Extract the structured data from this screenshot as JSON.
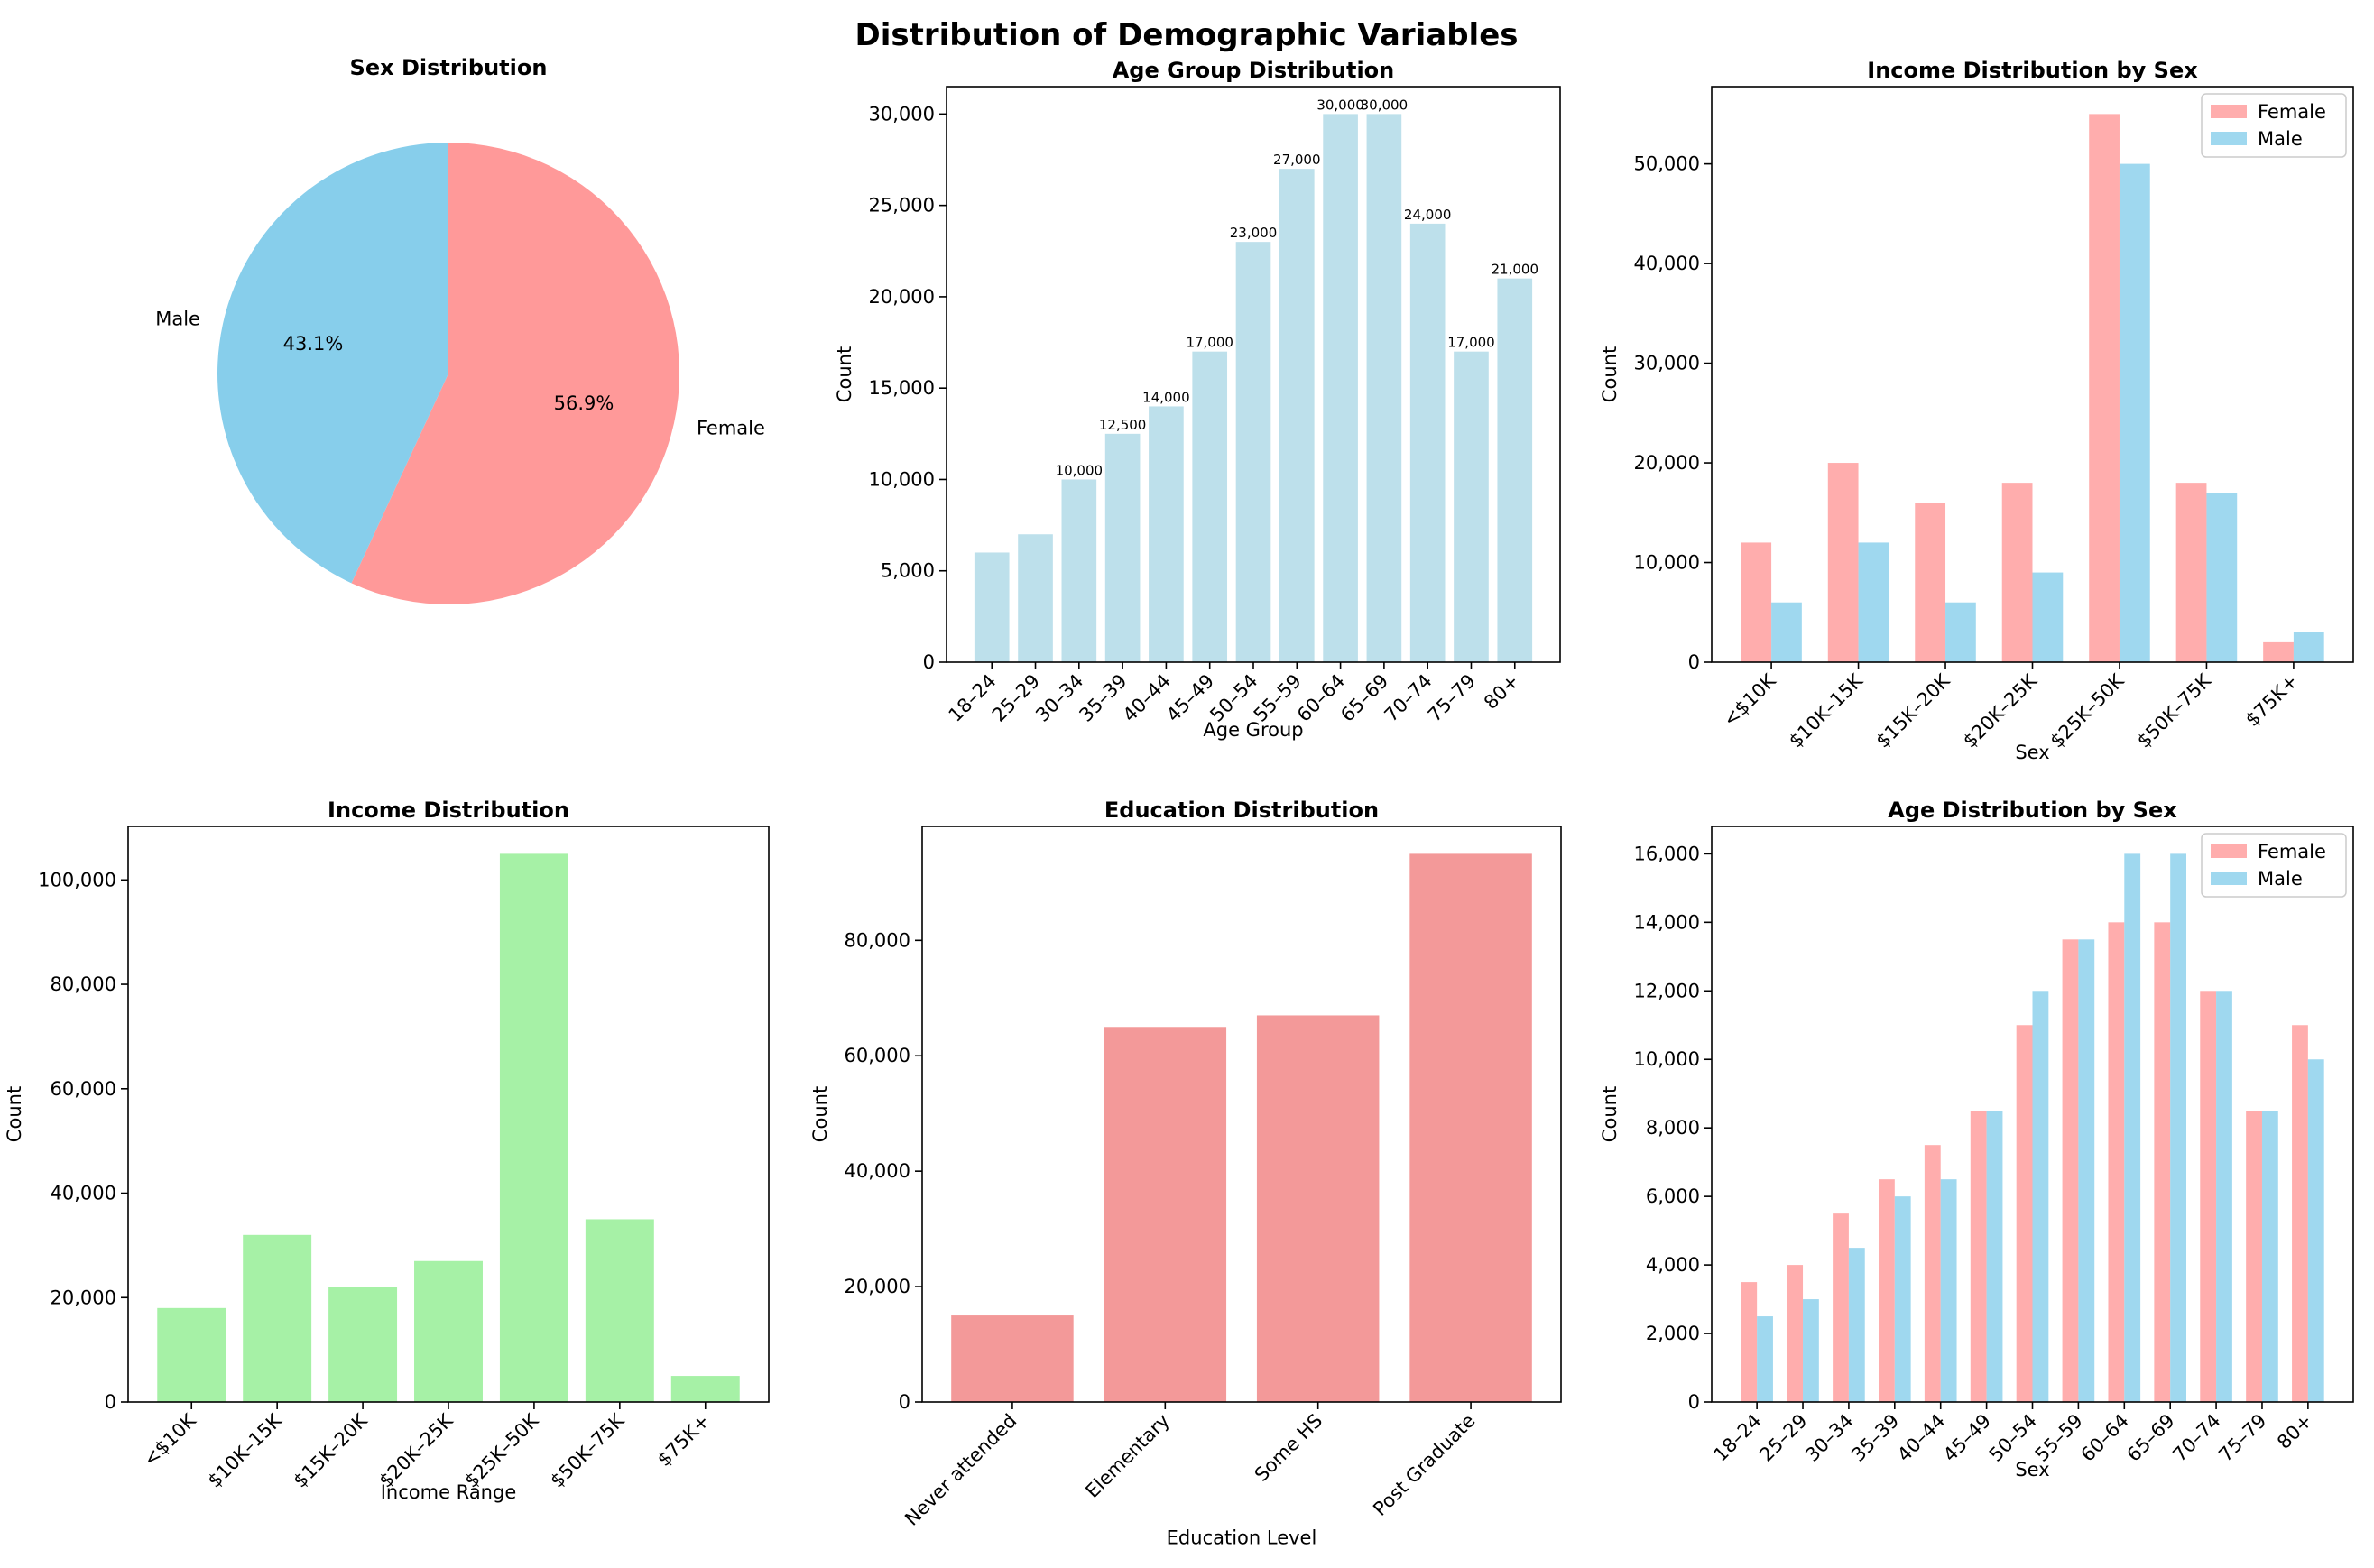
{
  "figure": {
    "title": "Distribution of Demographic Variables"
  },
  "chart_data": [
    {
      "id": "sex",
      "type": "pie",
      "title": "Sex Distribution",
      "labels": [
        "Female",
        "Male"
      ],
      "values": [
        56.9,
        43.1
      ],
      "pct_labels": [
        "56.9%",
        "43.1%"
      ],
      "colors": [
        "#ff9999",
        "#87ceeb"
      ]
    },
    {
      "id": "age",
      "type": "bar",
      "title": "Age Group Distribution",
      "xlabel": "Age Group",
      "ylabel": "Count",
      "categories": [
        "18–24",
        "25–29",
        "30–34",
        "35–39",
        "40–44",
        "45–49",
        "50–54",
        "55–59",
        "60–64",
        "65–69",
        "70–74",
        "75–79",
        "80+"
      ],
      "values": [
        6000,
        7000,
        10000,
        12500,
        14000,
        17000,
        23000,
        27000,
        30000,
        30000,
        24000,
        17000,
        21000
      ],
      "data_labels": [
        "",
        "",
        "10,000",
        "12,500",
        "14,000",
        "17,000",
        "23,000",
        "27,000",
        "30,000",
        "30,000",
        "24,000",
        "17,000",
        "21,000"
      ],
      "ylim": [
        0,
        31500
      ],
      "yticks": [
        0,
        5000,
        10000,
        15000,
        20000,
        25000,
        30000
      ],
      "ytick_labels": [
        "0",
        "5,000",
        "10,000",
        "15,000",
        "20,000",
        "25,000",
        "30,000"
      ],
      "color": "#add8e6"
    },
    {
      "id": "income_sex",
      "type": "bar",
      "title": "Income Distribution by Sex",
      "xlabel": "Sex",
      "ylabel": "Count",
      "categories": [
        "<$10K",
        "$10K–15K",
        "$15K–20K",
        "$20K–25K",
        "$25K–50K",
        "$50K–75K",
        "$75K+"
      ],
      "series": [
        {
          "name": "Female",
          "values": [
            12000,
            20000,
            16000,
            18000,
            55000,
            18000,
            2000
          ],
          "color": "#ff9999"
        },
        {
          "name": "Male",
          "values": [
            6000,
            12000,
            6000,
            9000,
            50000,
            17000,
            3000
          ],
          "color": "#87ceeb"
        }
      ],
      "ylim": [
        0,
        57750
      ],
      "yticks": [
        0,
        10000,
        20000,
        30000,
        40000,
        50000
      ],
      "ytick_labels": [
        "0",
        "10,000",
        "20,000",
        "30,000",
        "40,000",
        "50,000"
      ],
      "legend": "top-right"
    },
    {
      "id": "income",
      "type": "bar",
      "title": "Income Distribution",
      "xlabel": "Income Range",
      "ylabel": "Count",
      "categories": [
        "<$10K",
        "$10K–15K",
        "$15K–20K",
        "$20K–25K",
        "$25K–50K",
        "$50K–75K",
        "$75K+"
      ],
      "values": [
        18000,
        32000,
        22000,
        27000,
        105000,
        35000,
        5000
      ],
      "ylim": [
        0,
        110250
      ],
      "yticks": [
        0,
        20000,
        40000,
        60000,
        80000,
        100000
      ],
      "ytick_labels": [
        "0",
        "20,000",
        "40,000",
        "60,000",
        "80,000",
        "100,000"
      ],
      "color": "#90ee90"
    },
    {
      "id": "education",
      "type": "bar",
      "title": "Education Distribution",
      "xlabel": "Education Level",
      "ylabel": "Count",
      "categories": [
        "Never attended",
        "Elementary",
        "Some HS",
        "Post Graduate"
      ],
      "values": [
        15000,
        65000,
        67000,
        95000
      ],
      "ylim": [
        0,
        99750
      ],
      "yticks": [
        0,
        20000,
        40000,
        60000,
        80000
      ],
      "ytick_labels": [
        "0",
        "20,000",
        "40,000",
        "60,000",
        "80,000"
      ],
      "color": "#f08080"
    },
    {
      "id": "age_sex",
      "type": "bar",
      "title": "Age Distribution by Sex",
      "xlabel": "Sex",
      "ylabel": "Count",
      "categories": [
        "18–24",
        "25–29",
        "30–34",
        "35–39",
        "40–44",
        "45–49",
        "50–54",
        "55–59",
        "60–64",
        "65–69",
        "70–74",
        "75–79",
        "80+"
      ],
      "series": [
        {
          "name": "Female",
          "values": [
            3500,
            4000,
            5500,
            6500,
            7500,
            8500,
            11000,
            13500,
            14000,
            14000,
            12000,
            8500,
            11000
          ],
          "color": "#ff9999"
        },
        {
          "name": "Male",
          "values": [
            2500,
            3000,
            4500,
            6000,
            6500,
            8500,
            12000,
            13500,
            16000,
            16000,
            12000,
            8500,
            10000
          ],
          "color": "#87ceeb"
        }
      ],
      "ylim": [
        0,
        16800
      ],
      "yticks": [
        0,
        2000,
        4000,
        6000,
        8000,
        10000,
        12000,
        14000,
        16000
      ],
      "ytick_labels": [
        "0",
        "2,000",
        "4,000",
        "6,000",
        "8,000",
        "10,000",
        "12,000",
        "14,000",
        "16,000"
      ],
      "legend": "top-right"
    }
  ]
}
